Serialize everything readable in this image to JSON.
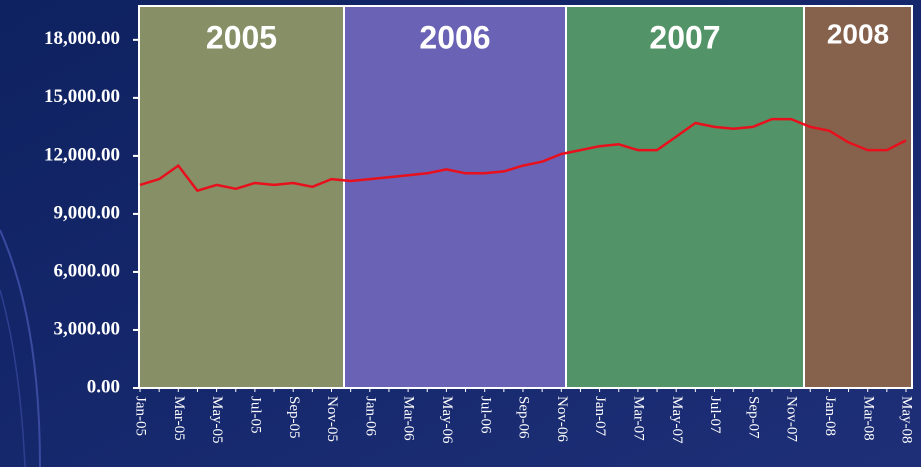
{
  "chart_data": {
    "type": "line",
    "categories": [
      "Jan-05",
      null,
      "Mar-05",
      null,
      "May-05",
      null,
      "Jul-05",
      null,
      "Sep-05",
      null,
      "Nov-05",
      null,
      "Jan-06",
      null,
      "Mar-06",
      null,
      "May-06",
      null,
      "Jul-06",
      null,
      "Sep-06",
      null,
      "Nov-06",
      null,
      "Jan-07",
      null,
      "Mar-07",
      null,
      "May-07",
      null,
      "Jul-07",
      null,
      "Sep-07",
      null,
      "Nov-07",
      null,
      "Jan-08",
      null,
      "Mar-08",
      null,
      "May-08"
    ],
    "series": [
      {
        "color": "#e8101c",
        "values": [
          10500,
          10800,
          11500,
          10200,
          10500,
          10300,
          10600,
          10500,
          10600,
          10400,
          10800,
          10700,
          10800,
          10900,
          11000,
          11100,
          11300,
          11100,
          11100,
          11200,
          11500,
          11700,
          12100,
          12300,
          12500,
          12600,
          12300,
          12300,
          13000,
          13700,
          13500,
          13400,
          13500,
          13900,
          13900,
          13500,
          13300,
          12700,
          12300,
          12300,
          12800
        ]
      }
    ],
    "ylim": [
      0,
      19750
    ],
    "yticks": [
      {
        "value": 0,
        "label": "0.00"
      },
      {
        "value": 3000,
        "label": "3,000.00"
      },
      {
        "value": 6000,
        "label": "6,000.00"
      },
      {
        "value": 9000,
        "label": "9,000.00"
      },
      {
        "value": 12000,
        "label": "12,000.00"
      },
      {
        "value": 15000,
        "label": "15,000.00"
      },
      {
        "value": 18000,
        "label": "18,000.00"
      }
    ],
    "bands": [
      {
        "label": "2005",
        "color": "#868f66"
      },
      {
        "label": "2006",
        "color": "#6a62b4"
      },
      {
        "label": "2007",
        "color": "#529467"
      },
      {
        "label": "2008",
        "color": "#86624d"
      }
    ]
  }
}
